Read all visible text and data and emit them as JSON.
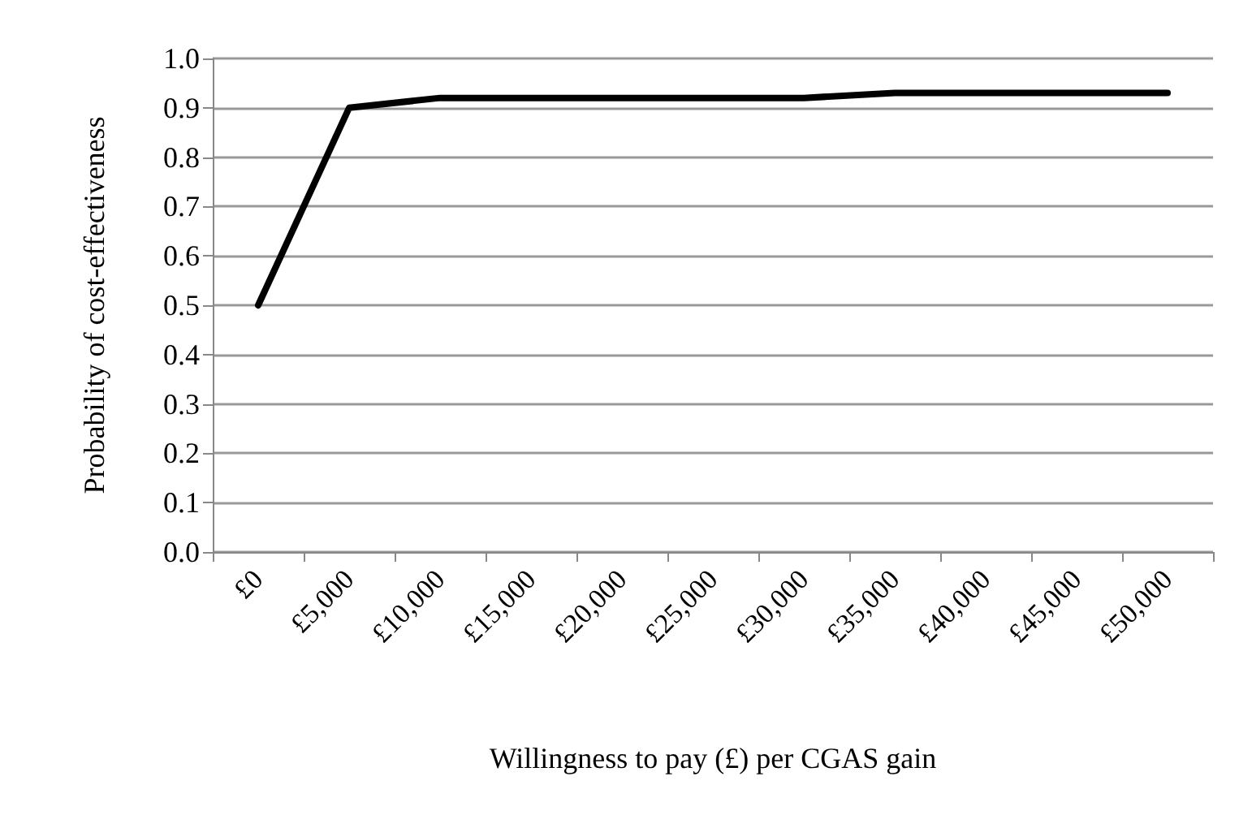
{
  "chart_data": {
    "type": "line",
    "xlabel": "Willingness to pay (£) per CGAS gain",
    "ylabel": "Probability of cost-effectiveness",
    "categories": [
      "£0",
      "£5,000",
      "£10,000",
      "£15,000",
      "£20,000",
      "£25,000",
      "£30,000",
      "£35,000",
      "£40,000",
      "£45,000",
      "£50,000"
    ],
    "series": [
      {
        "color": "#000000",
        "values": [
          0.5,
          0.9,
          0.92,
          0.92,
          0.92,
          0.92,
          0.92,
          0.93,
          0.93,
          0.93,
          0.93
        ]
      }
    ],
    "ylim": [
      0,
      1
    ],
    "yticks": [
      {
        "value": 0,
        "label": "0.0"
      },
      0.1,
      0.2,
      0.3,
      0.4,
      0.5,
      0.6,
      0.7,
      0.8,
      0.9,
      {
        "value": 1,
        "label": "1.0"
      }
    ],
    "grid": "y",
    "marker": "none",
    "line_style": "solid"
  }
}
